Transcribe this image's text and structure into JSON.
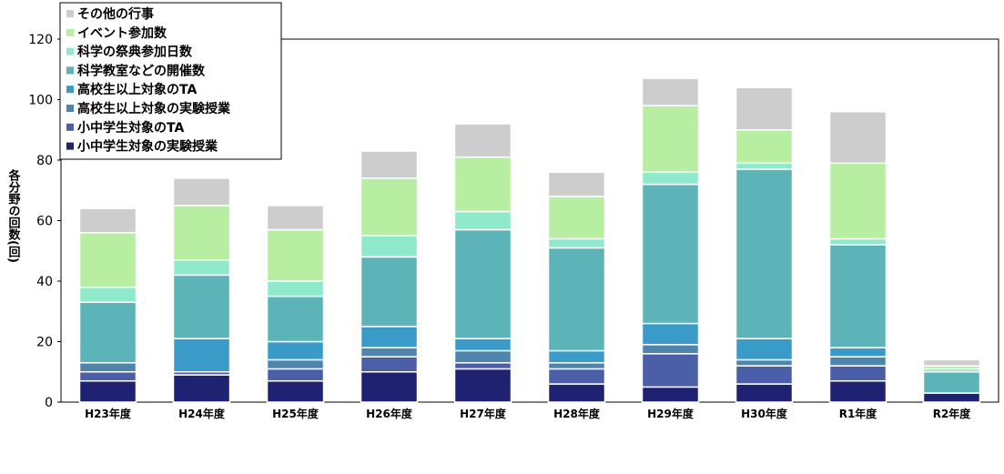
{
  "chart_data": {
    "type": "bar",
    "stacked": true,
    "title": "",
    "xlabel": "",
    "ylabel": "各分野の回数(回)",
    "ylim": [
      0,
      120
    ],
    "yticks": [
      0,
      20,
      40,
      60,
      80,
      100,
      120
    ],
    "grid": false,
    "legend_position": "top-left",
    "categories": [
      "H23年度",
      "H24年度",
      "H25年度",
      "H26年度",
      "H27年度",
      "H28年度",
      "H29年度",
      "H30年度",
      "R1年度",
      "R2年度"
    ],
    "series": [
      {
        "name": "小中学生対象の実験授業",
        "color": "#1f2270",
        "values": [
          7,
          9,
          7,
          10,
          11,
          6,
          5,
          6,
          7,
          3
        ]
      },
      {
        "name": "小中学生対象のTA",
        "color": "#4a5fa8",
        "values": [
          3,
          1,
          4,
          5,
          2,
          5,
          11,
          6,
          5,
          0
        ]
      },
      {
        "name": "高校生以上対象の実験授業",
        "color": "#4f85ad",
        "values": [
          3,
          0,
          3,
          3,
          4,
          2,
          3,
          2,
          3,
          0
        ]
      },
      {
        "name": "高校生以上対象のTA",
        "color": "#3a9ac8",
        "values": [
          0,
          11,
          6,
          7,
          4,
          4,
          7,
          7,
          3,
          0
        ]
      },
      {
        "name": "科学教室などの開催数",
        "color": "#5cb4b9",
        "values": [
          20,
          21,
          15,
          23,
          36,
          34,
          46,
          56,
          34,
          7
        ]
      },
      {
        "name": "科学の祭典参加日数",
        "color": "#8eeacb",
        "values": [
          5,
          5,
          5,
          7,
          6,
          3,
          4,
          2,
          2,
          1
        ]
      },
      {
        "name": "イベント参加数",
        "color": "#b7eea2",
        "values": [
          18,
          18,
          17,
          19,
          18,
          14,
          22,
          11,
          25,
          1
        ]
      },
      {
        "name": "その他の行事",
        "color": "#cdcdcd",
        "values": [
          8,
          9,
          8,
          9,
          11,
          8,
          9,
          14,
          17,
          2
        ]
      }
    ]
  }
}
